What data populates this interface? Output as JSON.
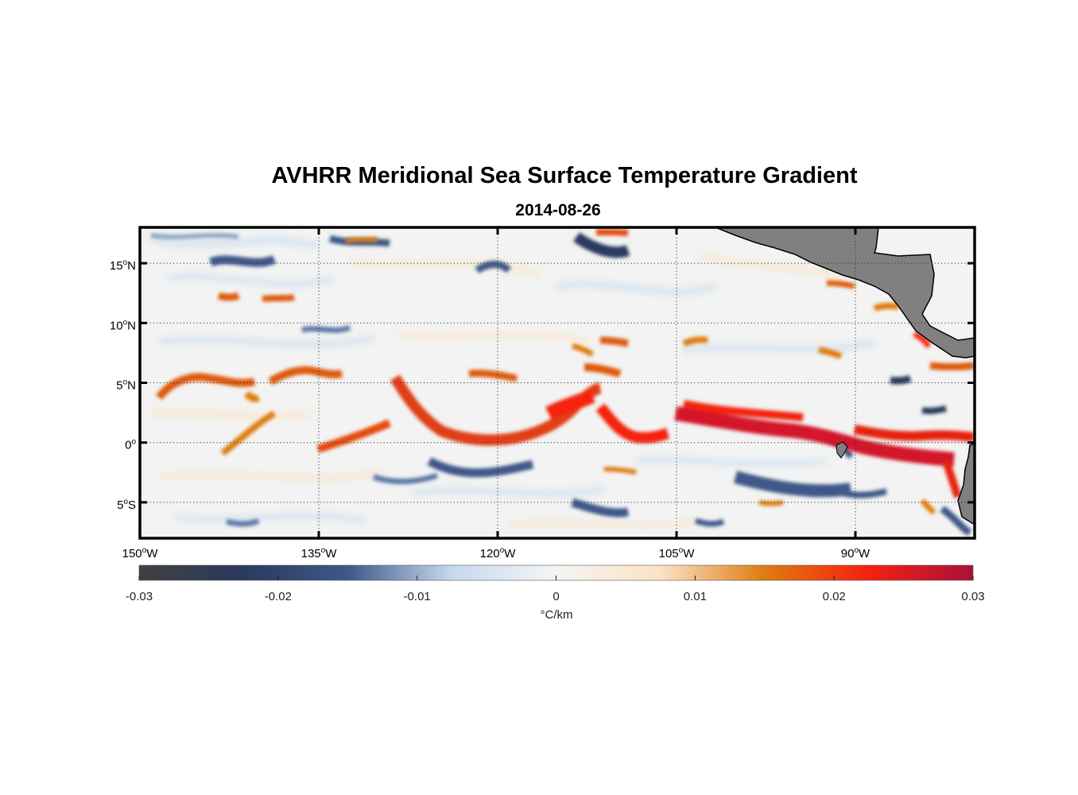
{
  "title": "AVHRR Meridional Sea Surface Temperature Gradient",
  "subtitle": "2014-08-26",
  "chart_data": {
    "type": "heatmap",
    "title": "AVHRR Meridional Sea Surface Temperature Gradient",
    "subtitle": "2014-08-26",
    "xlim": [
      -150,
      -80
    ],
    "ylim": [
      -8,
      18
    ],
    "lon_ticks": [
      {
        "value": -150,
        "label": "150°W",
        "num": "150",
        "sup": "o",
        "dir": "W"
      },
      {
        "value": -135,
        "label": "135°W",
        "num": "135",
        "sup": "o",
        "dir": "W"
      },
      {
        "value": -120,
        "label": "120°W",
        "num": "120",
        "sup": "o",
        "dir": "W"
      },
      {
        "value": -105,
        "label": "105°W",
        "num": "105",
        "sup": "o",
        "dir": "W"
      },
      {
        "value": -90,
        "label": "90°W",
        "num": "90",
        "sup": "o",
        "dir": "W"
      }
    ],
    "lat_ticks": [
      {
        "value": 15,
        "label": "15°N",
        "num": "15",
        "sup": "o",
        "dir": "N"
      },
      {
        "value": 10,
        "label": "10°N",
        "num": "10",
        "sup": "o",
        "dir": "N"
      },
      {
        "value": 5,
        "label": "5°N",
        "num": "5",
        "sup": "o",
        "dir": "N"
      },
      {
        "value": 0,
        "label": "0°",
        "num": "0",
        "sup": "o",
        "dir": ""
      },
      {
        "value": -5,
        "label": "5°S",
        "num": "5",
        "sup": "o",
        "dir": "S"
      }
    ],
    "grid": "dotted",
    "colorbar": {
      "orientation": "horizontal",
      "placement": "bottom",
      "range": [
        -0.03,
        0.03
      ],
      "ticks": [
        "-0.03",
        "-0.02",
        "-0.01",
        "0",
        "0.01",
        "0.02",
        "0.03"
      ],
      "label": "°C/km",
      "colors": [
        "#404040",
        "#2a3a5e",
        "#3f5889",
        "#c7d9ee",
        "#f4f4f4",
        "#fbe3c4",
        "#de7c10",
        "#f52010",
        "#a8123a"
      ]
    },
    "features": [
      {
        "name": "warm gradient band near equator (~1°N)",
        "lon_range": [
          -135,
          -80
        ],
        "lat_range": [
          -1,
          3
        ],
        "value": 0.02
      },
      {
        "name": "warm gradient band near 5°N",
        "lon_range": [
          -150,
          -133
        ],
        "lat_range": [
          3,
          6
        ],
        "value": 0.012
      },
      {
        "name": "cold gradient band south of equator",
        "lon_range": [
          -125,
          -95
        ],
        "lat_range": [
          -5,
          -2
        ],
        "value": -0.015
      }
    ],
    "land_color": "#808080"
  }
}
